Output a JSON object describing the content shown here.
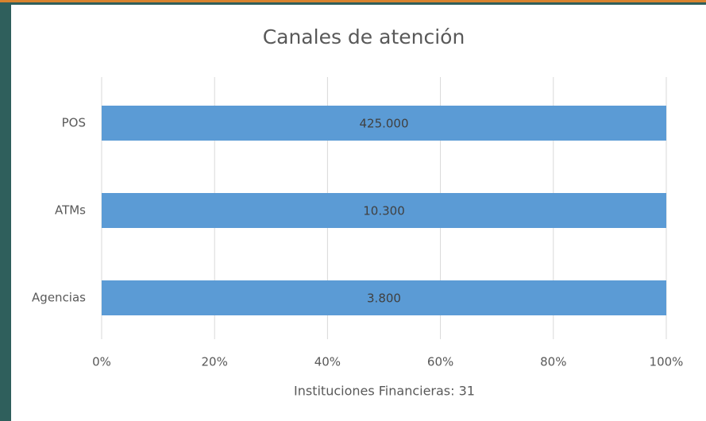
{
  "chart_data": {
    "type": "bar",
    "orientation": "horizontal",
    "stack": "percent",
    "title": "Canales de atención",
    "xlabel": "Instituciones Financieras: 31",
    "categories": [
      "POS",
      "ATMs",
      "Agencias"
    ],
    "values": [
      425000,
      10300,
      3800
    ],
    "value_labels": [
      "425.000",
      "10.300",
      "3.800"
    ],
    "color": "#5b9bd5",
    "xlim": [
      0,
      100
    ],
    "xticks": [
      {
        "value": 0,
        "label": "0%"
      },
      {
        "value": 20,
        "label": "20%"
      },
      {
        "value": 40,
        "label": "40%"
      },
      {
        "value": 60,
        "label": "60%"
      },
      {
        "value": 80,
        "label": "80%"
      },
      {
        "value": 100,
        "label": "100%"
      }
    ],
    "grid": true
  }
}
